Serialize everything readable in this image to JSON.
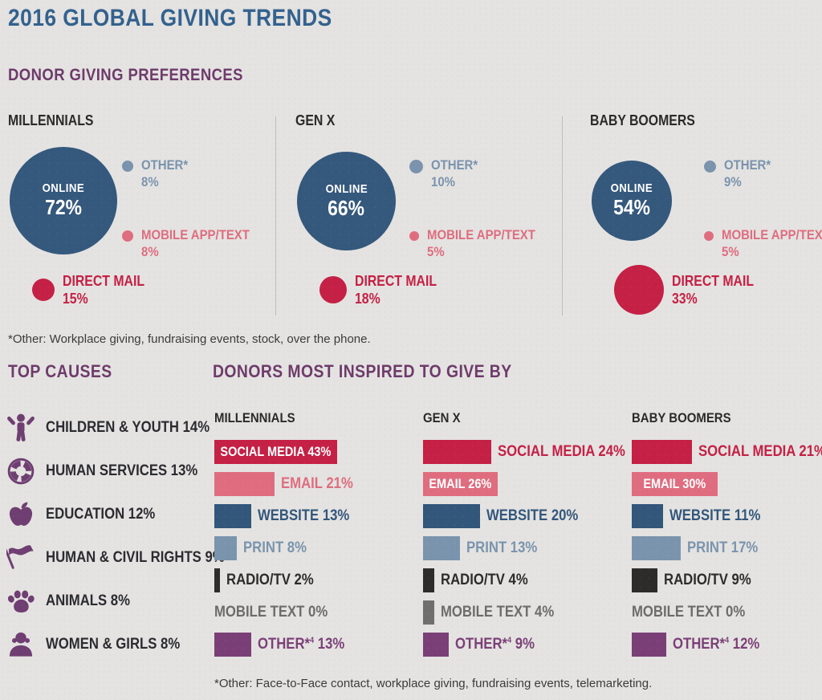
{
  "header": {
    "title": "2016 GLOBAL GIVING TRENDS"
  },
  "colors": {
    "background": "#e4e3e1",
    "title_blue": "#33618e",
    "heading_purple": "#6e3a6b",
    "navy": "#35587d",
    "steel_blue": "#7b93ad",
    "pink": "#df6d7f",
    "crimson": "#c52045",
    "dark_gray": "#2d2c2b",
    "mid_gray": "#716f6e",
    "plum_purple": "#7b3f77",
    "text_dark": "#2b2a28"
  },
  "chart_data": [
    {
      "type": "bubble",
      "title": "DONOR GIVING PREFERENCES",
      "groups": [
        "MILLENNIALS",
        "GEN X",
        "BABY BOOMERS"
      ],
      "series": [
        {
          "name": "ONLINE",
          "values": [
            72,
            66,
            54
          ],
          "unit": "%",
          "color": "#35587d",
          "label_color": "#ffffff"
        },
        {
          "name": "OTHER*",
          "values": [
            8,
            10,
            9
          ],
          "unit": "%",
          "color": "#7b93ad",
          "label_color": "#7b93ad"
        },
        {
          "name": "MOBILE APP/TEXT",
          "values": [
            8,
            5,
            5
          ],
          "unit": "%",
          "color": "#df6d7f",
          "label_color": "#df6d7f"
        },
        {
          "name": "DIRECT MAIL",
          "values": [
            15,
            18,
            33
          ],
          "unit": "%",
          "color": "#c52045",
          "label_color": "#c52045"
        }
      ],
      "footnote": "*Other: Workplace giving, fundraising events, stock, over the phone."
    },
    {
      "type": "bar",
      "title": "DONORS MOST INSPIRED TO GIVE BY",
      "groups": [
        "MILLENNIALS",
        "GEN X",
        "BABY BOOMERS"
      ],
      "categories": [
        {
          "label": "SOCIAL MEDIA",
          "sup": "",
          "color": "#c52045",
          "label_color": "#c52045"
        },
        {
          "label": "EMAIL",
          "sup": "",
          "color": "#df6d7f",
          "label_color": "#df6d7f"
        },
        {
          "label": "WEBSITE",
          "sup": "",
          "color": "#33567b",
          "label_color": "#33567b"
        },
        {
          "label": "PRINT",
          "sup": "",
          "color": "#7b94ad",
          "label_color": "#7b94ad"
        },
        {
          "label": "RADIO/TV",
          "sup": "",
          "color": "#2d2c2b",
          "label_color": "#2d2c2b"
        },
        {
          "label": "MOBILE TEXT",
          "sup": "",
          "color": "#716f6e",
          "label_color": "#6e6c6b"
        },
        {
          "label": "OTHER*",
          "sup": "4",
          "color": "#7b3f77",
          "label_color": "#7b3f77"
        }
      ],
      "series": [
        {
          "group": "MILLENNIALS",
          "values": [
            43,
            21,
            13,
            8,
            2,
            0,
            13
          ],
          "inside_label_index": 0
        },
        {
          "group": "GEN X",
          "values": [
            24,
            26,
            20,
            13,
            4,
            4,
            9
          ],
          "inside_label_index": 1
        },
        {
          "group": "BABY BOOMERS",
          "values": [
            21,
            30,
            11,
            17,
            9,
            0,
            12
          ],
          "inside_label_index": 1
        }
      ],
      "unit": "%",
      "footnote": "*Other: Face-to-Face contact, workplace giving, fundraising events, telemarketing."
    }
  ],
  "top_causes": {
    "heading": "TOP CAUSES",
    "icon_color": "#6f3e72",
    "items": [
      {
        "icon": "child-icon",
        "label": "CHILDREN & YOUTH",
        "value": "14%"
      },
      {
        "icon": "life-ring-icon",
        "label": "HUMAN SERVICES",
        "value": "13%"
      },
      {
        "icon": "apple-icon",
        "label": "EDUCATION",
        "value": "12%"
      },
      {
        "icon": "flag-icon",
        "label": "HUMAN & CIVIL RIGHTS",
        "value": "9%"
      },
      {
        "icon": "paw-icon",
        "label": "ANIMALS",
        "value": "8%"
      },
      {
        "icon": "woman-icon",
        "label": "WOMEN & GIRLS",
        "value": "8%"
      }
    ]
  }
}
